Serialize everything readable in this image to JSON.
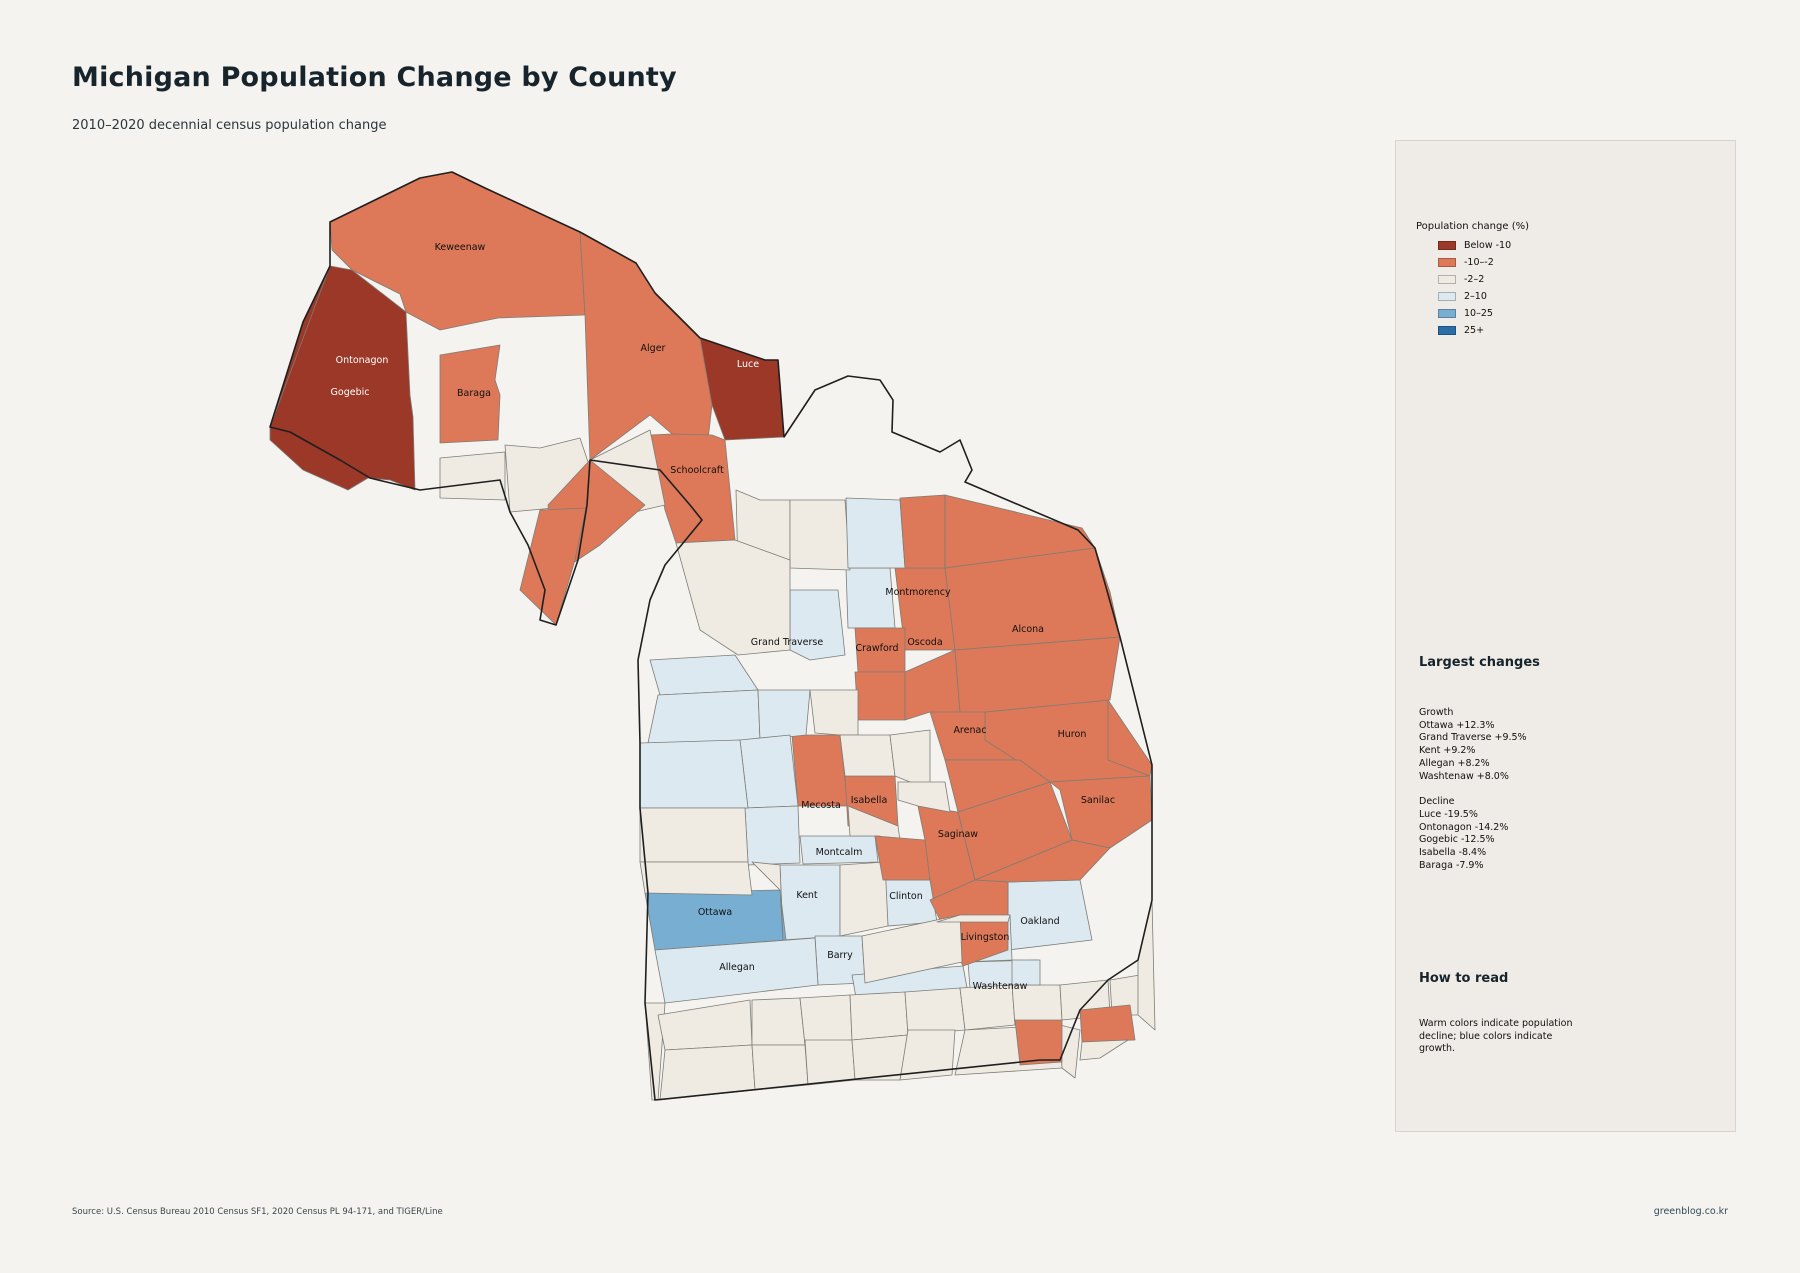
{
  "title": "Michigan Population Change by County",
  "subtitle": "2010–2020 decennial census population change",
  "legend": {
    "title": "Population change (%)",
    "classes": [
      {
        "label": "Below -10",
        "color": "#9b3828"
      },
      {
        "label": "-10–-2",
        "color": "#dd7858"
      },
      {
        "label": "-2–2",
        "color": "#efebe3"
      },
      {
        "label": "2–10",
        "color": "#dce9f1"
      },
      {
        "label": "10–25",
        "color": "#79aed3"
      },
      {
        "label": "25+",
        "color": "#2a6ea8"
      }
    ]
  },
  "largest_changes": {
    "title": "Largest changes",
    "growth_label": "Growth",
    "growth": [
      "Ottawa  +12.3%",
      "Grand Traverse  +9.5%",
      "Kent  +9.2%",
      "Allegan  +8.2%",
      "Washtenaw  +8.0%"
    ],
    "decline_label": "Decline",
    "decline": [
      "Luce  -19.5%",
      "Ontonagon  -14.2%",
      "Gogebic  -12.5%",
      "Isabella  -8.4%",
      "Baraga  -7.9%"
    ]
  },
  "how_to_read": {
    "title": "How to read",
    "text": "Warm colors indicate population decline; blue colors indicate growth."
  },
  "source": "Source: U.S. Census Bureau 2010 Census SF1, 2020 Census PL 94-171, and TIGER/Line",
  "credit": "greenblog.co.kr",
  "counties": [
    {
      "name": "Keweenaw",
      "class": 1,
      "label": true
    },
    {
      "name": "Alger",
      "class": 1,
      "label": true
    },
    {
      "name": "Luce",
      "class": 0,
      "label": true
    },
    {
      "name": "Ontonagon",
      "class": 0,
      "label": true
    },
    {
      "name": "Gogebic",
      "class": 0,
      "label": true
    },
    {
      "name": "Baraga",
      "class": 1,
      "label": true
    },
    {
      "name": "Schoolcraft",
      "class": 1,
      "label": true
    },
    {
      "name": "Montmorency",
      "class": 3,
      "label": true
    },
    {
      "name": "Alcona",
      "class": 1,
      "label": true
    },
    {
      "name": "Oscoda",
      "class": 1,
      "label": true
    },
    {
      "name": "Crawford",
      "class": 1,
      "label": true
    },
    {
      "name": "Grand Traverse",
      "class": 3,
      "label": true
    },
    {
      "name": "Arenac",
      "class": 1,
      "label": true
    },
    {
      "name": "Huron",
      "class": 1,
      "label": true
    },
    {
      "name": "Sanilac",
      "class": 1,
      "label": true
    },
    {
      "name": "Mecosta",
      "class": 1,
      "label": true
    },
    {
      "name": "Isabella",
      "class": 1,
      "label": true
    },
    {
      "name": "Saginaw",
      "class": 1,
      "label": true
    },
    {
      "name": "Montcalm",
      "class": 3,
      "label": true
    },
    {
      "name": "Kent",
      "class": 3,
      "label": true
    },
    {
      "name": "Clinton",
      "class": 3,
      "label": true
    },
    {
      "name": "Ottawa",
      "class": 4,
      "label": true
    },
    {
      "name": "Oakland",
      "class": 3,
      "label": true
    },
    {
      "name": "Livingston",
      "class": 3,
      "label": true
    },
    {
      "name": "Barry",
      "class": 3,
      "label": true
    },
    {
      "name": "Allegan",
      "class": 3,
      "label": true
    },
    {
      "name": "Washtenaw",
      "class": 3,
      "label": true
    },
    {
      "name": "",
      "class": 3
    },
    {
      "name": "",
      "class": 2
    },
    {
      "name": "",
      "class": 2
    },
    {
      "name": "",
      "class": 2
    },
    {
      "name": "",
      "class": 2
    },
    {
      "name": "",
      "class": 2
    },
    {
      "name": "",
      "class": 1
    },
    {
      "name": "",
      "class": 1
    },
    {
      "name": "",
      "class": 2
    },
    {
      "name": "",
      "class": 3
    },
    {
      "name": "",
      "class": 1
    },
    {
      "name": "",
      "class": 1
    },
    {
      "name": "",
      "class": 1
    },
    {
      "name": "",
      "class": 1
    },
    {
      "name": "",
      "class": 1
    },
    {
      "name": "",
      "class": 3
    },
    {
      "name": "",
      "class": 3
    },
    {
      "name": "",
      "class": 3
    },
    {
      "name": "",
      "class": 3
    },
    {
      "name": "",
      "class": 3
    },
    {
      "name": "",
      "class": 3
    },
    {
      "name": "",
      "class": 2
    },
    {
      "name": "",
      "class": 2
    },
    {
      "name": "",
      "class": 2
    },
    {
      "name": "",
      "class": 2
    },
    {
      "name": "",
      "class": 2
    },
    {
      "name": "",
      "class": 2
    },
    {
      "name": "",
      "class": 2
    },
    {
      "name": "",
      "class": 2
    },
    {
      "name": "",
      "class": 2
    },
    {
      "name": "",
      "class": 1
    },
    {
      "name": "",
      "class": 1
    },
    {
      "name": "",
      "class": 1
    },
    {
      "name": "",
      "class": 1
    },
    {
      "name": "",
      "class": 1
    },
    {
      "name": "",
      "class": 1
    },
    {
      "name": "",
      "class": 2
    },
    {
      "name": "",
      "class": 2
    },
    {
      "name": "",
      "class": 2
    },
    {
      "name": "",
      "class": 2
    },
    {
      "name": "",
      "class": 2
    },
    {
      "name": "",
      "class": 2
    },
    {
      "name": "",
      "class": 2
    },
    {
      "name": "",
      "class": 2
    },
    {
      "name": "",
      "class": 2
    },
    {
      "name": "",
      "class": 2
    },
    {
      "name": "",
      "class": 2
    },
    {
      "name": "",
      "class": 2
    },
    {
      "name": "",
      "class": 2
    },
    {
      "name": "",
      "class": 2
    },
    {
      "name": "",
      "class": 2
    },
    {
      "name": "",
      "class": 2
    },
    {
      "name": "",
      "class": 2
    },
    {
      "name": "",
      "class": 2
    },
    {
      "name": "",
      "class": 2
    },
    {
      "name": "",
      "class": 2
    },
    {
      "name": "",
      "class": 1
    },
    {
      "name": "",
      "class": 1
    },
    {
      "name": "",
      "class": 2
    },
    {
      "name": "",
      "class": 3
    },
    {
      "name": "",
      "class": 3
    },
    {
      "name": "",
      "class": 3
    },
    {
      "name": "",
      "class": 3
    },
    {
      "name": "",
      "class": 3
    },
    {
      "name": "",
      "class": 3
    },
    {
      "name": "",
      "class": 2
    }
  ]
}
